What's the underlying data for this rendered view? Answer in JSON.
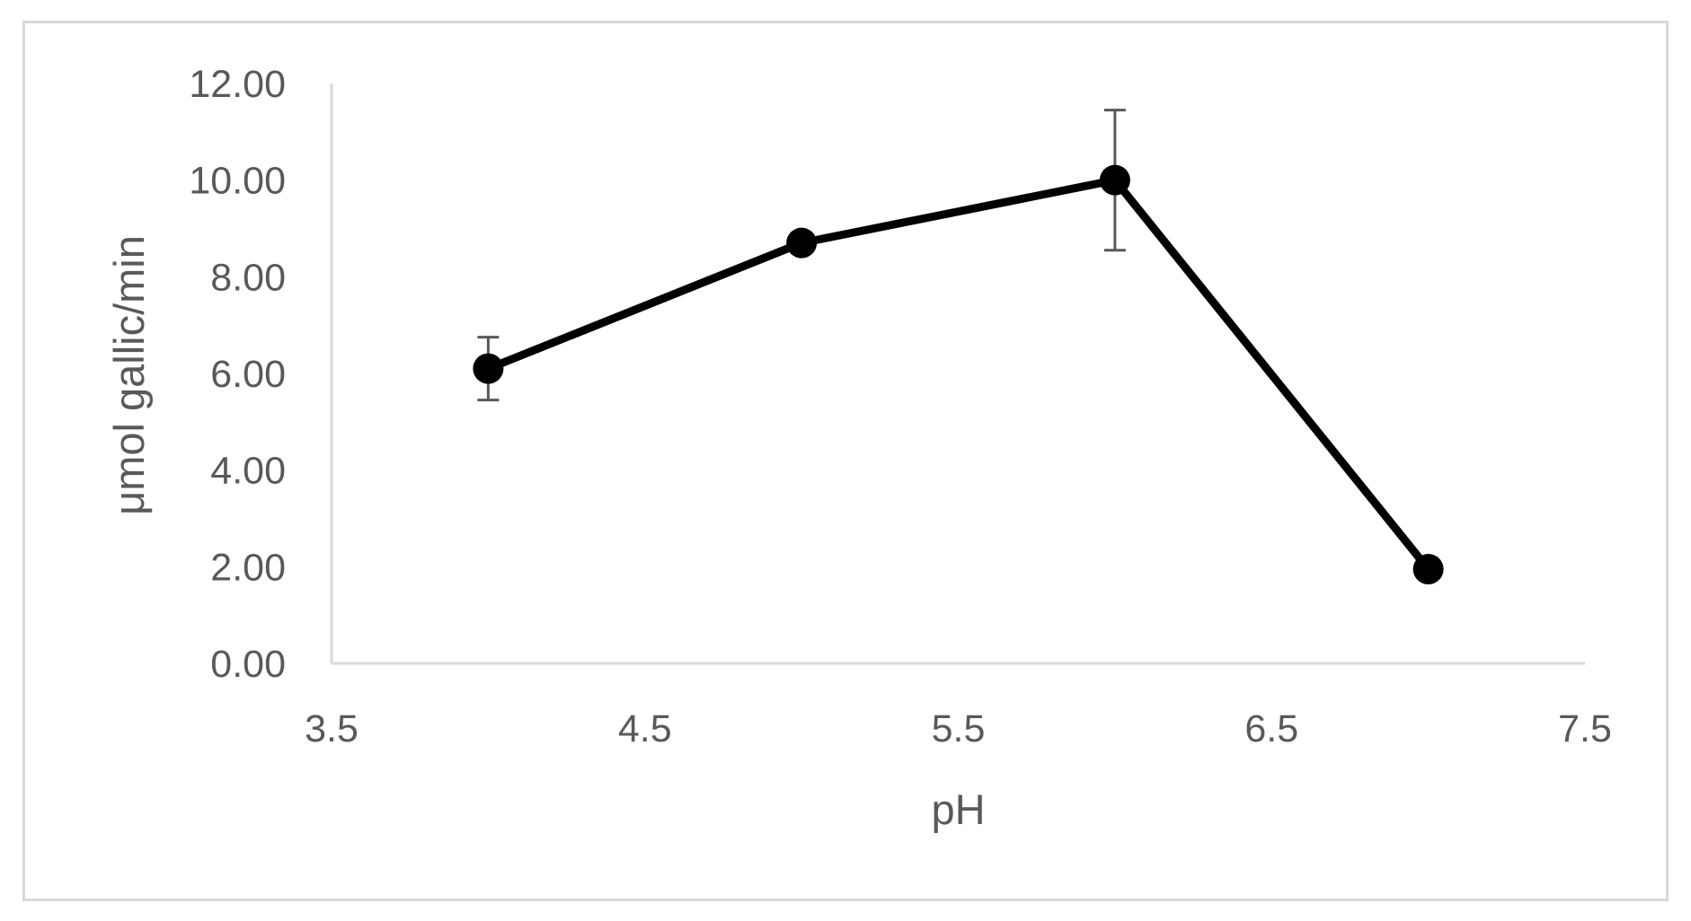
{
  "chart_data": {
    "type": "line",
    "title": "",
    "xlabel": "pH",
    "ylabel": "μmol gallic/min",
    "xlim": [
      3.5,
      7.5
    ],
    "ylim": [
      0,
      12
    ],
    "x_ticks": [
      3.5,
      4.5,
      5.5,
      6.5,
      7.5
    ],
    "x_tick_labels": [
      "3.5",
      "4.5",
      "5.5",
      "6.5",
      "7.5"
    ],
    "y_ticks": [
      0,
      2,
      4,
      6,
      8,
      10,
      12
    ],
    "y_tick_labels": [
      "0.00",
      "2.00",
      "4.00",
      "6.00",
      "8.00",
      "10.00",
      "12.00"
    ],
    "grid": false,
    "legend": "none",
    "series": [
      {
        "x": [
          4,
          5,
          6,
          7
        ],
        "y": [
          6.1,
          8.7,
          10.0,
          1.95
        ],
        "error": [
          0.65,
          0.05,
          1.45,
          0.05
        ],
        "color": "#000000",
        "marker": "circle"
      }
    ],
    "axis_color": "#d9d9d9",
    "text_color": "#595959",
    "error_bar_color": "#595959"
  }
}
